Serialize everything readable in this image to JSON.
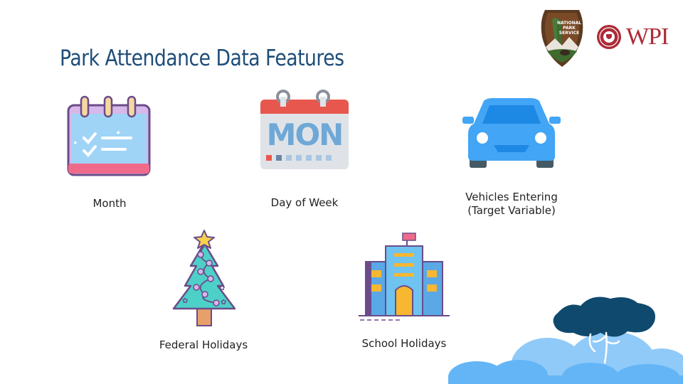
{
  "slide": {
    "title": "Park Attendance Data Features",
    "logos": {
      "nps": {
        "text_lines": [
          "NATIONAL",
          "PARK",
          "SERVICE"
        ]
      },
      "wpi": {
        "text": "WPI"
      }
    },
    "features": [
      {
        "label": "Month",
        "icon": "calendar-checklist-icon"
      },
      {
        "label": "Day of Week",
        "icon": "calendar-mon-icon"
      },
      {
        "label_line1": "Vehicles Entering",
        "label_line2": "(Target Variable)",
        "icon": "car-icon"
      },
      {
        "label": "Federal Holidays",
        "icon": "christmas-tree-icon"
      },
      {
        "label": "School Holidays",
        "icon": "school-building-icon"
      }
    ],
    "colors": {
      "title": "#1f4e79",
      "calendar_pink": "#f06b8a",
      "calendar_red": "#e8574d",
      "car_blue": "#42a5f5",
      "tree_teal": "#4dd0c8",
      "school_blue": "#5aa8e6",
      "cloud_blue": "#64b5f6",
      "tree_navy": "#0f4a6e"
    }
  }
}
